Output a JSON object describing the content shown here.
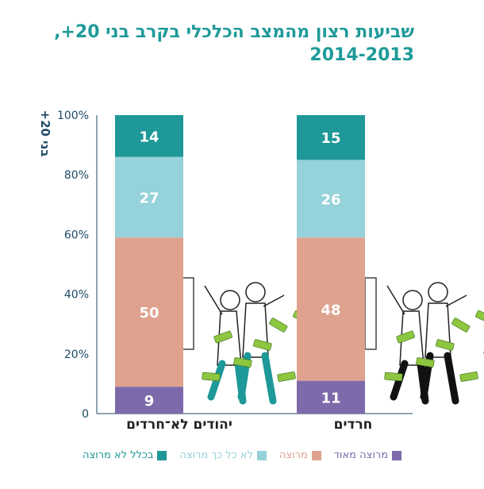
{
  "chart_data": {
    "type": "bar",
    "stacked": true,
    "title": "שביעות רצון מהמצב הכלכלי בקרב בני 20+,",
    "subtitle": "2014-2013",
    "ylabel": "בני 20+",
    "ylim": [
      0,
      100
    ],
    "yticks": [
      "0",
      "20%",
      "40%",
      "60%",
      "80%",
      "100%"
    ],
    "categories": [
      "יהודים לא־חרדים",
      "חרדים"
    ],
    "series": [
      {
        "name": "מרוצה מאוד",
        "color": "#7d6aab",
        "values": [
          9,
          11
        ]
      },
      {
        "name": "מרוצה",
        "color": "#dfa28e",
        "values": [
          50,
          48
        ]
      },
      {
        "name": "לא כל כך מרוצה",
        "color": "#96d2da",
        "values": [
          27,
          26
        ]
      },
      {
        "name": "בכלל לא מרוצה",
        "color": "#1e9898",
        "values": [
          14,
          15
        ]
      }
    ],
    "legend_position": "bottom",
    "grid": false
  },
  "colors": {
    "accent": "#1f9a99",
    "axis": "#1d4a66",
    "money": "#8dc63f"
  }
}
